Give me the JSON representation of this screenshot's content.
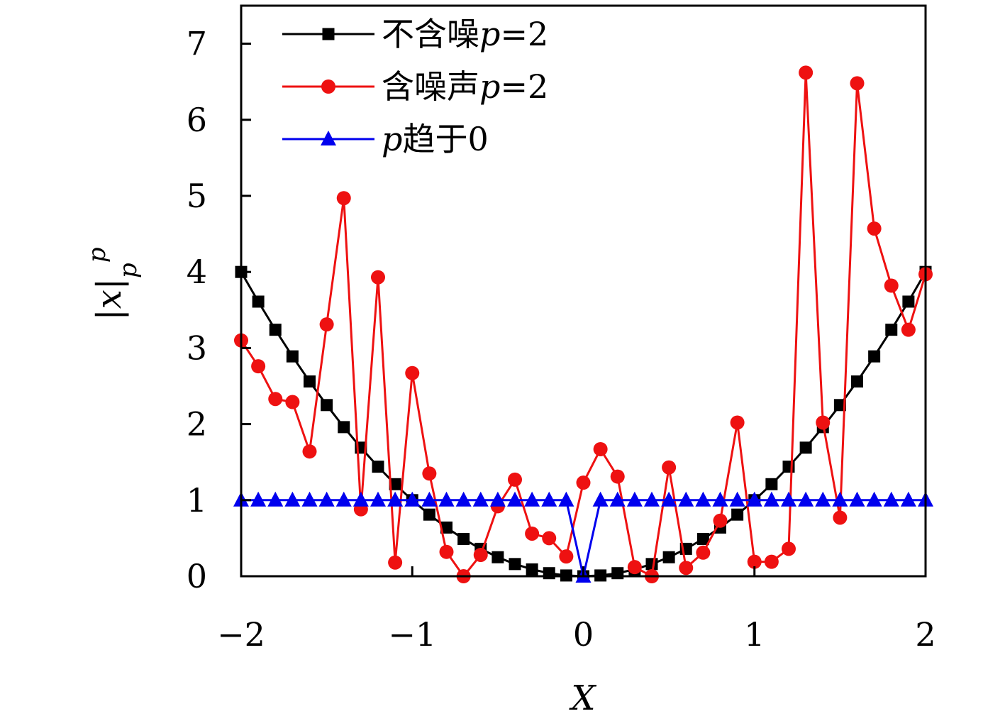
{
  "chart_data": {
    "type": "line",
    "xlabel": "X",
    "ylabel": "|x|",
    "ylabel_sub": "p",
    "ylabel_sup": "p",
    "xlim": [
      -2,
      2
    ],
    "ylim": [
      0,
      7.5
    ],
    "xticks": [
      -2,
      -1,
      0,
      1,
      2
    ],
    "xtick_labels": [
      "−2",
      "−1",
      "0",
      "1",
      "2"
    ],
    "yticks": [
      0,
      1,
      2,
      3,
      4,
      5,
      6,
      7
    ],
    "ytick_labels": [
      "0",
      "1",
      "2",
      "3",
      "4",
      "5",
      "6",
      "7"
    ],
    "grid": false,
    "legend_position": "top-left",
    "series": [
      {
        "name": "不含噪p=2",
        "legend_text": "不含噪",
        "legend_var": "p",
        "legend_eq": "=2",
        "color": "#000000",
        "marker": "square",
        "x": [
          -2.0,
          -1.9,
          -1.8,
          -1.7,
          -1.6,
          -1.5,
          -1.4,
          -1.3,
          -1.2,
          -1.1,
          -1.0,
          -0.9,
          -0.8,
          -0.7,
          -0.6,
          -0.5,
          -0.4,
          -0.3,
          -0.2,
          -0.1,
          0.0,
          0.1,
          0.2,
          0.3,
          0.4,
          0.5,
          0.6,
          0.7,
          0.8,
          0.9,
          1.0,
          1.1,
          1.2,
          1.3,
          1.4,
          1.5,
          1.6,
          1.7,
          1.8,
          1.9,
          2.0
        ],
        "y": [
          4.0,
          3.61,
          3.24,
          2.89,
          2.56,
          2.25,
          1.96,
          1.69,
          1.44,
          1.21,
          1.0,
          0.81,
          0.64,
          0.49,
          0.36,
          0.25,
          0.16,
          0.09,
          0.04,
          0.01,
          0.0,
          0.01,
          0.04,
          0.09,
          0.16,
          0.25,
          0.36,
          0.49,
          0.64,
          0.81,
          1.0,
          1.21,
          1.44,
          1.69,
          1.96,
          2.25,
          2.56,
          2.89,
          3.24,
          3.61,
          4.0
        ]
      },
      {
        "name": "含噪声p=2",
        "legend_text": "含噪声",
        "legend_var": "p",
        "legend_eq": "=2",
        "color": "#ee1111",
        "marker": "circle",
        "x": [
          -2.0,
          -1.9,
          -1.8,
          -1.7,
          -1.6,
          -1.5,
          -1.4,
          -1.3,
          -1.2,
          -1.1,
          -1.0,
          -0.9,
          -0.8,
          -0.7,
          -0.6,
          -0.5,
          -0.4,
          -0.3,
          -0.2,
          -0.1,
          0.0,
          0.1,
          0.2,
          0.3,
          0.4,
          0.5,
          0.6,
          0.7,
          0.8,
          0.9,
          1.0,
          1.1,
          1.2,
          1.3,
          1.4,
          1.5,
          1.6,
          1.7,
          1.8,
          1.9,
          2.0
        ],
        "y": [
          3.1,
          2.76,
          2.33,
          2.29,
          1.64,
          3.31,
          4.97,
          0.88,
          3.93,
          0.18,
          2.67,
          1.35,
          0.32,
          0.0,
          0.28,
          0.92,
          1.27,
          0.56,
          0.5,
          0.26,
          1.23,
          1.67,
          1.31,
          0.12,
          0.0,
          1.43,
          0.11,
          0.31,
          0.73,
          2.02,
          0.19,
          0.19,
          0.36,
          6.62,
          2.02,
          0.77,
          6.48,
          4.57,
          3.82,
          3.24,
          3.97
        ]
      },
      {
        "name": "p趋于0",
        "legend_text": "趋于0",
        "legend_var": "p",
        "legend_eq": "",
        "color": "#0000ee",
        "marker": "triangle",
        "x": [
          -2.0,
          -1.9,
          -1.8,
          -1.7,
          -1.6,
          -1.5,
          -1.4,
          -1.3,
          -1.2,
          -1.1,
          -1.0,
          -0.9,
          -0.8,
          -0.7,
          -0.6,
          -0.5,
          -0.4,
          -0.3,
          -0.2,
          -0.1,
          0.0,
          0.1,
          0.2,
          0.3,
          0.4,
          0.5,
          0.6,
          0.7,
          0.8,
          0.9,
          1.0,
          1.1,
          1.2,
          1.3,
          1.4,
          1.5,
          1.6,
          1.7,
          1.8,
          1.9,
          2.0
        ],
        "y": [
          1,
          1,
          1,
          1,
          1,
          1,
          1,
          1,
          1,
          1,
          1,
          1,
          1,
          1,
          1,
          1,
          1,
          1,
          1,
          1,
          0,
          1,
          1,
          1,
          1,
          1,
          1,
          1,
          1,
          1,
          1,
          1,
          1,
          1,
          1,
          1,
          1,
          1,
          1,
          1,
          1
        ]
      }
    ]
  }
}
